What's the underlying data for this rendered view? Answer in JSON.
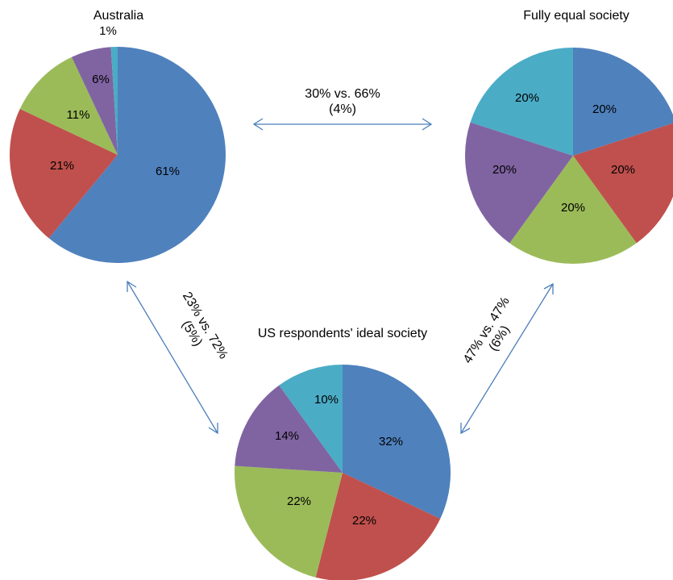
{
  "chart_data": [
    {
      "type": "pie",
      "title": "Australia",
      "values": [
        61,
        21,
        11,
        6,
        1
      ],
      "labels": [
        "61%",
        "21%",
        "11%",
        "6%",
        "1%"
      ],
      "colors": [
        "#4f81bd",
        "#c0504d",
        "#9bbb59",
        "#8064a2",
        "#4bacc6"
      ]
    },
    {
      "type": "pie",
      "title": "Fully equal society",
      "values": [
        20,
        20,
        20,
        20,
        20
      ],
      "labels": [
        "20%",
        "20%",
        "20%",
        "20%",
        "20%"
      ],
      "colors": [
        "#4f81bd",
        "#c0504d",
        "#9bbb59",
        "#8064a2",
        "#4bacc6"
      ]
    },
    {
      "type": "pie",
      "title": "US respondents' ideal society",
      "values": [
        32,
        22,
        22,
        14,
        10
      ],
      "labels": [
        "32%",
        "22%",
        "22%",
        "14%",
        "10%"
      ],
      "colors": [
        "#4f81bd",
        "#c0504d",
        "#9bbb59",
        "#8064a2",
        "#4bacc6"
      ]
    }
  ],
  "comparisons": [
    {
      "line1": "30% vs. 66%",
      "line2": "(4%)"
    },
    {
      "line1": "23% vs. 72%",
      "line2": "(5%)"
    },
    {
      "line1": "47% vs. 47%",
      "line2": "(6%)"
    }
  ],
  "arrow_color": "#4a7ebb"
}
